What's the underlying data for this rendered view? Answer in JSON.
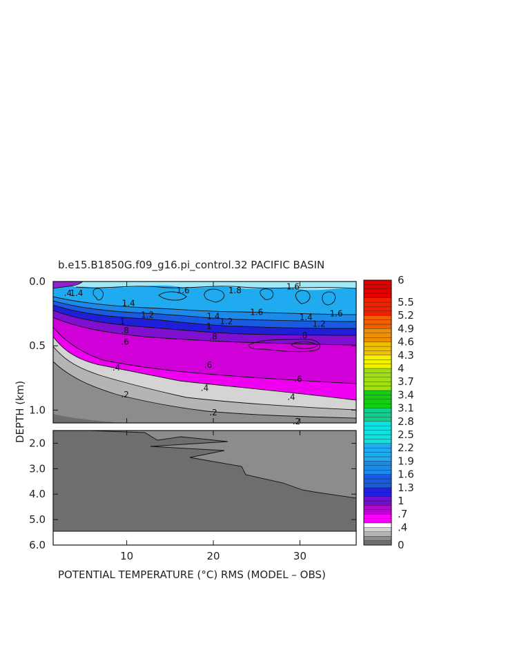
{
  "chart_data": {
    "type": "heatmap",
    "title": "b.e15.B1850G.f09_g16.pi_control.32 PACIFIC BASIN",
    "xlabel": "POTENTIAL TEMPERATURE (°C) RMS (MODEL – OBS)",
    "ylabel": "DEPTH (km)",
    "x_ticks": [
      "10",
      "20",
      "30"
    ],
    "x_tick_values": [
      10,
      20,
      30
    ],
    "xlim": [
      1.5,
      36.5
    ],
    "upper_panel": {
      "ylim": [
        0.0,
        1.1
      ],
      "y_ticks": [
        "0.0",
        "0.5",
        "1.0"
      ],
      "y_tick_values": [
        0.0,
        0.5,
        1.0
      ]
    },
    "lower_panel": {
      "ylim": [
        1.5,
        6.0
      ],
      "y_ticks": [
        "2.0",
        "3.0",
        "4.0",
        "5.0",
        "6.0"
      ],
      "y_tick_values": [
        2.0,
        3.0,
        4.0,
        5.0,
        6.0
      ]
    },
    "colorbar": {
      "labels": [
        "6",
        "5.5",
        "5.2",
        "4.9",
        "4.6",
        "4.3",
        "4",
        "3.7",
        "3.4",
        "3.1",
        "2.8",
        "2.5",
        "2.2",
        "1.9",
        "1.6",
        "1.3",
        "1",
        ".7",
        ".4",
        "0"
      ],
      "label_values": [
        6.0,
        5.5,
        5.2,
        4.9,
        4.6,
        4.3,
        4.0,
        3.7,
        3.4,
        3.1,
        2.8,
        2.5,
        2.2,
        1.9,
        1.6,
        1.3,
        1.0,
        0.7,
        0.4,
        0.0
      ]
    },
    "contour_labels": [
      {
        "text": "1.6",
        "x": 29.2,
        "y": 0.04
      },
      {
        "text": "1.8",
        "x": 22.5,
        "y": 0.07
      },
      {
        "text": "1.6",
        "x": 16.5,
        "y": 0.07
      },
      {
        "text": "1.6",
        "x": 25.0,
        "y": 0.24
      },
      {
        "text": "1.6",
        "x": 34.2,
        "y": 0.25
      },
      {
        "text": "1.4",
        "x": 10.2,
        "y": 0.17
      },
      {
        "text": "1.4",
        "x": 20.0,
        "y": 0.27
      },
      {
        "text": "1.4",
        "x": 30.7,
        "y": 0.28
      },
      {
        "text": "1.2",
        "x": 12.4,
        "y": 0.26
      },
      {
        "text": "1.2",
        "x": 21.5,
        "y": 0.31
      },
      {
        "text": "1.2",
        "x": 32.2,
        "y": 0.33
      },
      {
        "text": "1",
        "x": 9.5,
        "y": 0.31
      },
      {
        "text": "1",
        "x": 19.5,
        "y": 0.35
      },
      {
        "text": ".8",
        "x": 9.8,
        "y": 0.38
      },
      {
        "text": ".8",
        "x": 20.0,
        "y": 0.43
      },
      {
        "text": ".8",
        "x": 30.4,
        "y": 0.42
      },
      {
        "text": ".6",
        "x": 9.8,
        "y": 0.47
      },
      {
        "text": ".6",
        "x": 19.4,
        "y": 0.65
      },
      {
        "text": ".6",
        "x": 29.8,
        "y": 0.76
      },
      {
        "text": ".4",
        "x": 8.8,
        "y": 0.67
      },
      {
        "text": ".4",
        "x": 19.0,
        "y": 0.83
      },
      {
        "text": ".4",
        "x": 29.0,
        "y": 0.9
      },
      {
        "text": ".2",
        "x": 9.8,
        "y": 0.88
      },
      {
        "text": ".2",
        "x": 20.0,
        "y": 1.02
      },
      {
        "text": ".2",
        "x": 29.6,
        "y": 1.09
      },
      {
        "text": ".4",
        "x": 3.2,
        "y": 0.09
      },
      {
        "text": "1.4",
        "x": 4.2,
        "y": 0.09
      }
    ]
  }
}
